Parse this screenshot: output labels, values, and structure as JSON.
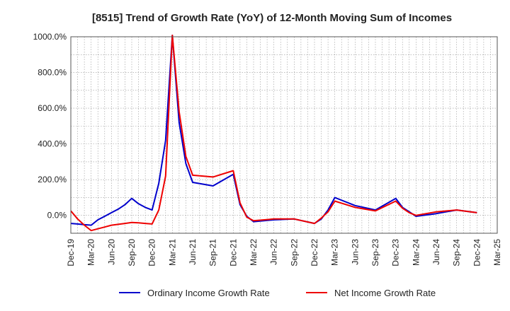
{
  "chart_data": {
    "type": "line",
    "title": "[8515]  Trend of Growth Rate (YoY) of 12-Month Moving Sum of Incomes",
    "xlabel": "",
    "ylabel": "",
    "ylim": [
      -100,
      1000
    ],
    "y_ticks": [
      0,
      200,
      400,
      600,
      800,
      1000
    ],
    "y_tick_labels": [
      "0.0%",
      "200.0%",
      "400.0%",
      "600.0%",
      "800.0%",
      "1000.0%"
    ],
    "x_start": "Dec-19",
    "x_ticks": [
      "Dec-19",
      "Mar-20",
      "Jun-20",
      "Sep-20",
      "Dec-20",
      "Mar-21",
      "Jun-21",
      "Sep-21",
      "Dec-21",
      "Mar-22",
      "Jun-22",
      "Sep-22",
      "Dec-22",
      "Mar-23",
      "Jun-23",
      "Sep-23",
      "Dec-23",
      "Mar-24",
      "Jun-24",
      "Sep-24",
      "Dec-24",
      "Mar-25"
    ],
    "grid": true,
    "legend_position": "bottom",
    "series": [
      {
        "name": "Ordinary Income Growth Rate",
        "color": "#0000cc",
        "x": [
          "Dec-19",
          "Jan-20",
          "Feb-20",
          "Mar-20",
          "Apr-20",
          "May-20",
          "Jun-20",
          "Jul-20",
          "Aug-20",
          "Sep-20",
          "Oct-20",
          "Nov-20",
          "Dec-20",
          "Jan-21",
          "Feb-21",
          "Mar-21",
          "Apr-21",
          "May-21",
          "Jun-21",
          "Sep-21",
          "Dec-21",
          "Jan-22",
          "Feb-22",
          "Mar-22",
          "Jun-22",
          "Sep-22",
          "Dec-22",
          "Jan-23",
          "Feb-23",
          "Mar-23",
          "Jun-23",
          "Sep-23",
          "Dec-23",
          "Jan-24",
          "Feb-24",
          "Mar-24",
          "Jun-24",
          "Sep-24",
          "Dec-24"
        ],
        "y": [
          -45,
          -48,
          -52,
          -55,
          -25,
          -5,
          15,
          35,
          60,
          95,
          65,
          45,
          30,
          180,
          420,
          1040,
          520,
          290,
          185,
          165,
          230,
          60,
          -5,
          -35,
          -25,
          -20,
          -45,
          -20,
          30,
          100,
          55,
          30,
          95,
          45,
          20,
          -5,
          10,
          30,
          15
        ]
      },
      {
        "name": "Net Income Growth Rate",
        "color": "#ee0000",
        "x": [
          "Dec-19",
          "Jan-20",
          "Feb-20",
          "Mar-20",
          "Apr-20",
          "May-20",
          "Jun-20",
          "Jul-20",
          "Aug-20",
          "Sep-20",
          "Oct-20",
          "Nov-20",
          "Dec-20",
          "Jan-21",
          "Feb-21",
          "Mar-21",
          "Apr-21",
          "May-21",
          "Jun-21",
          "Sep-21",
          "Dec-21",
          "Jan-22",
          "Feb-22",
          "Mar-22",
          "Jun-22",
          "Sep-22",
          "Dec-22",
          "Jan-23",
          "Feb-23",
          "Mar-23",
          "Jun-23",
          "Sep-23",
          "Dec-23",
          "Jan-24",
          "Feb-24",
          "Mar-24",
          "Jun-24",
          "Sep-24",
          "Dec-24"
        ],
        "y": [
          25,
          -20,
          -55,
          -85,
          -75,
          -65,
          -55,
          -50,
          -45,
          -40,
          -42,
          -45,
          -48,
          30,
          220,
          1060,
          580,
          330,
          225,
          215,
          250,
          70,
          -10,
          -30,
          -20,
          -20,
          -45,
          -15,
          20,
          80,
          45,
          25,
          80,
          40,
          15,
          0,
          20,
          30,
          15
        ]
      }
    ]
  }
}
